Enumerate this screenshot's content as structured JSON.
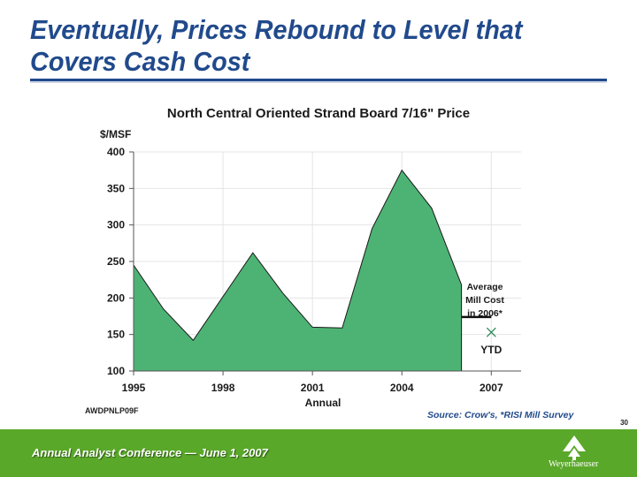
{
  "slide": {
    "title": "Eventually, Prices Rebound to Level that Covers Cash Cost",
    "doc_code": "AWDPNLP09F",
    "source_note": "Source: Crow's, *RISI Mill Survey",
    "page_number": "30"
  },
  "footer": {
    "conference": "Annual Analyst Conference — June 1, 2007",
    "logo_text": "Weyerhaeuser"
  },
  "colors": {
    "title": "#214a8c",
    "area_fill": "#4db374",
    "footer_band": "#5aa829",
    "ytd_marker": "#2e8b57"
  },
  "chart_data": {
    "type": "area",
    "title": "North Central Oriented Strand Board 7/16\" Price",
    "ylabel": "$/MSF",
    "xlabel": "Annual",
    "xlim": [
      1995,
      2008
    ],
    "ylim": [
      100,
      400
    ],
    "x_ticks": [
      1995,
      1998,
      2001,
      2004,
      2007
    ],
    "y_ticks": [
      100,
      150,
      200,
      250,
      300,
      350,
      400
    ],
    "grid": true,
    "series": [
      {
        "x": [
          1995,
          1996,
          1997,
          1998,
          1999,
          2000,
          2001,
          2002,
          2003,
          2004,
          2005,
          2006
        ],
        "values": [
          245,
          185,
          142,
          202,
          262,
          207,
          160,
          159,
          295,
          375,
          323,
          218
        ]
      }
    ],
    "annotations": {
      "mill_cost": {
        "label_lines": [
          "Average",
          "Mill Cost",
          "in 2006*"
        ],
        "x_start": 2006,
        "x_end": 2007,
        "value": 174
      },
      "ytd": {
        "label": "YTD",
        "x": 2007,
        "value": 153
      }
    }
  }
}
